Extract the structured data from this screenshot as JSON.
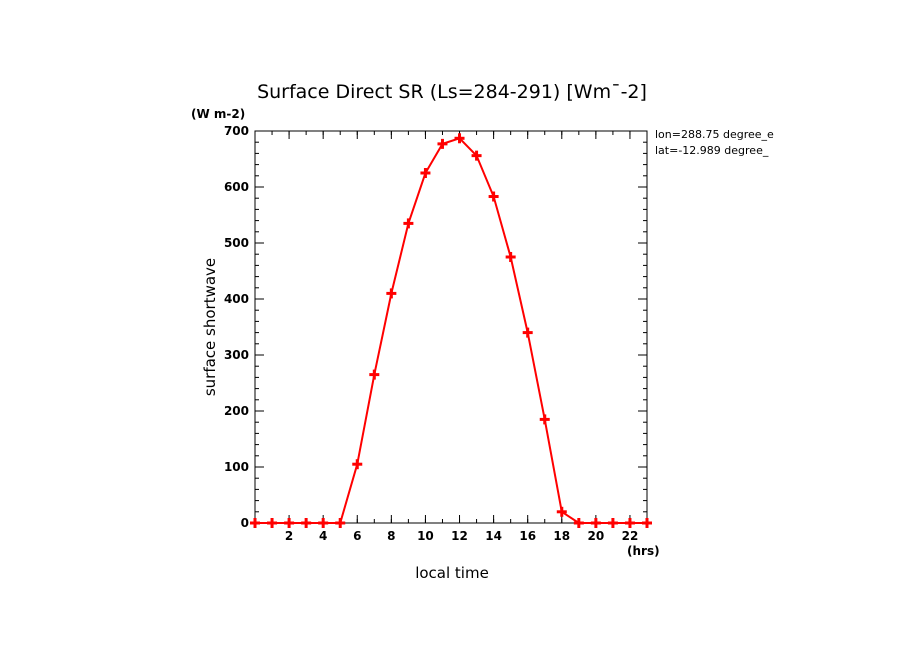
{
  "chart_data": {
    "type": "line",
    "title": "Surface Direct SR (Ls=284-291) [Wm¯-2]",
    "ylabel": "surface shortwave",
    "yunit": "(W m-2)",
    "xlabel": "local time",
    "xunit": "(hrs)",
    "xlim": [
      0,
      23
    ],
    "ylim": [
      0,
      700
    ],
    "xticks": [
      2,
      4,
      6,
      8,
      10,
      12,
      14,
      16,
      18,
      20,
      22
    ],
    "yticks": [
      0,
      100,
      200,
      300,
      400,
      500,
      600,
      700
    ],
    "annotations": [
      "lon=288.75 degree_e",
      "lat=-12.989 degree_"
    ],
    "grid": false,
    "legend": "none",
    "series": [
      {
        "color": "#ff0000",
        "marker": "plus",
        "x": [
          0,
          1,
          2,
          3,
          4,
          5,
          6,
          7,
          8,
          9,
          10,
          11,
          12,
          13,
          14,
          15,
          16,
          17,
          18,
          19,
          20,
          21,
          22,
          23
        ],
        "y": [
          0,
          0,
          0,
          0,
          0,
          0,
          105,
          265,
          410,
          535,
          625,
          677,
          687,
          656,
          583,
          475,
          340,
          185,
          20,
          0,
          0,
          0,
          0,
          0
        ]
      }
    ]
  }
}
